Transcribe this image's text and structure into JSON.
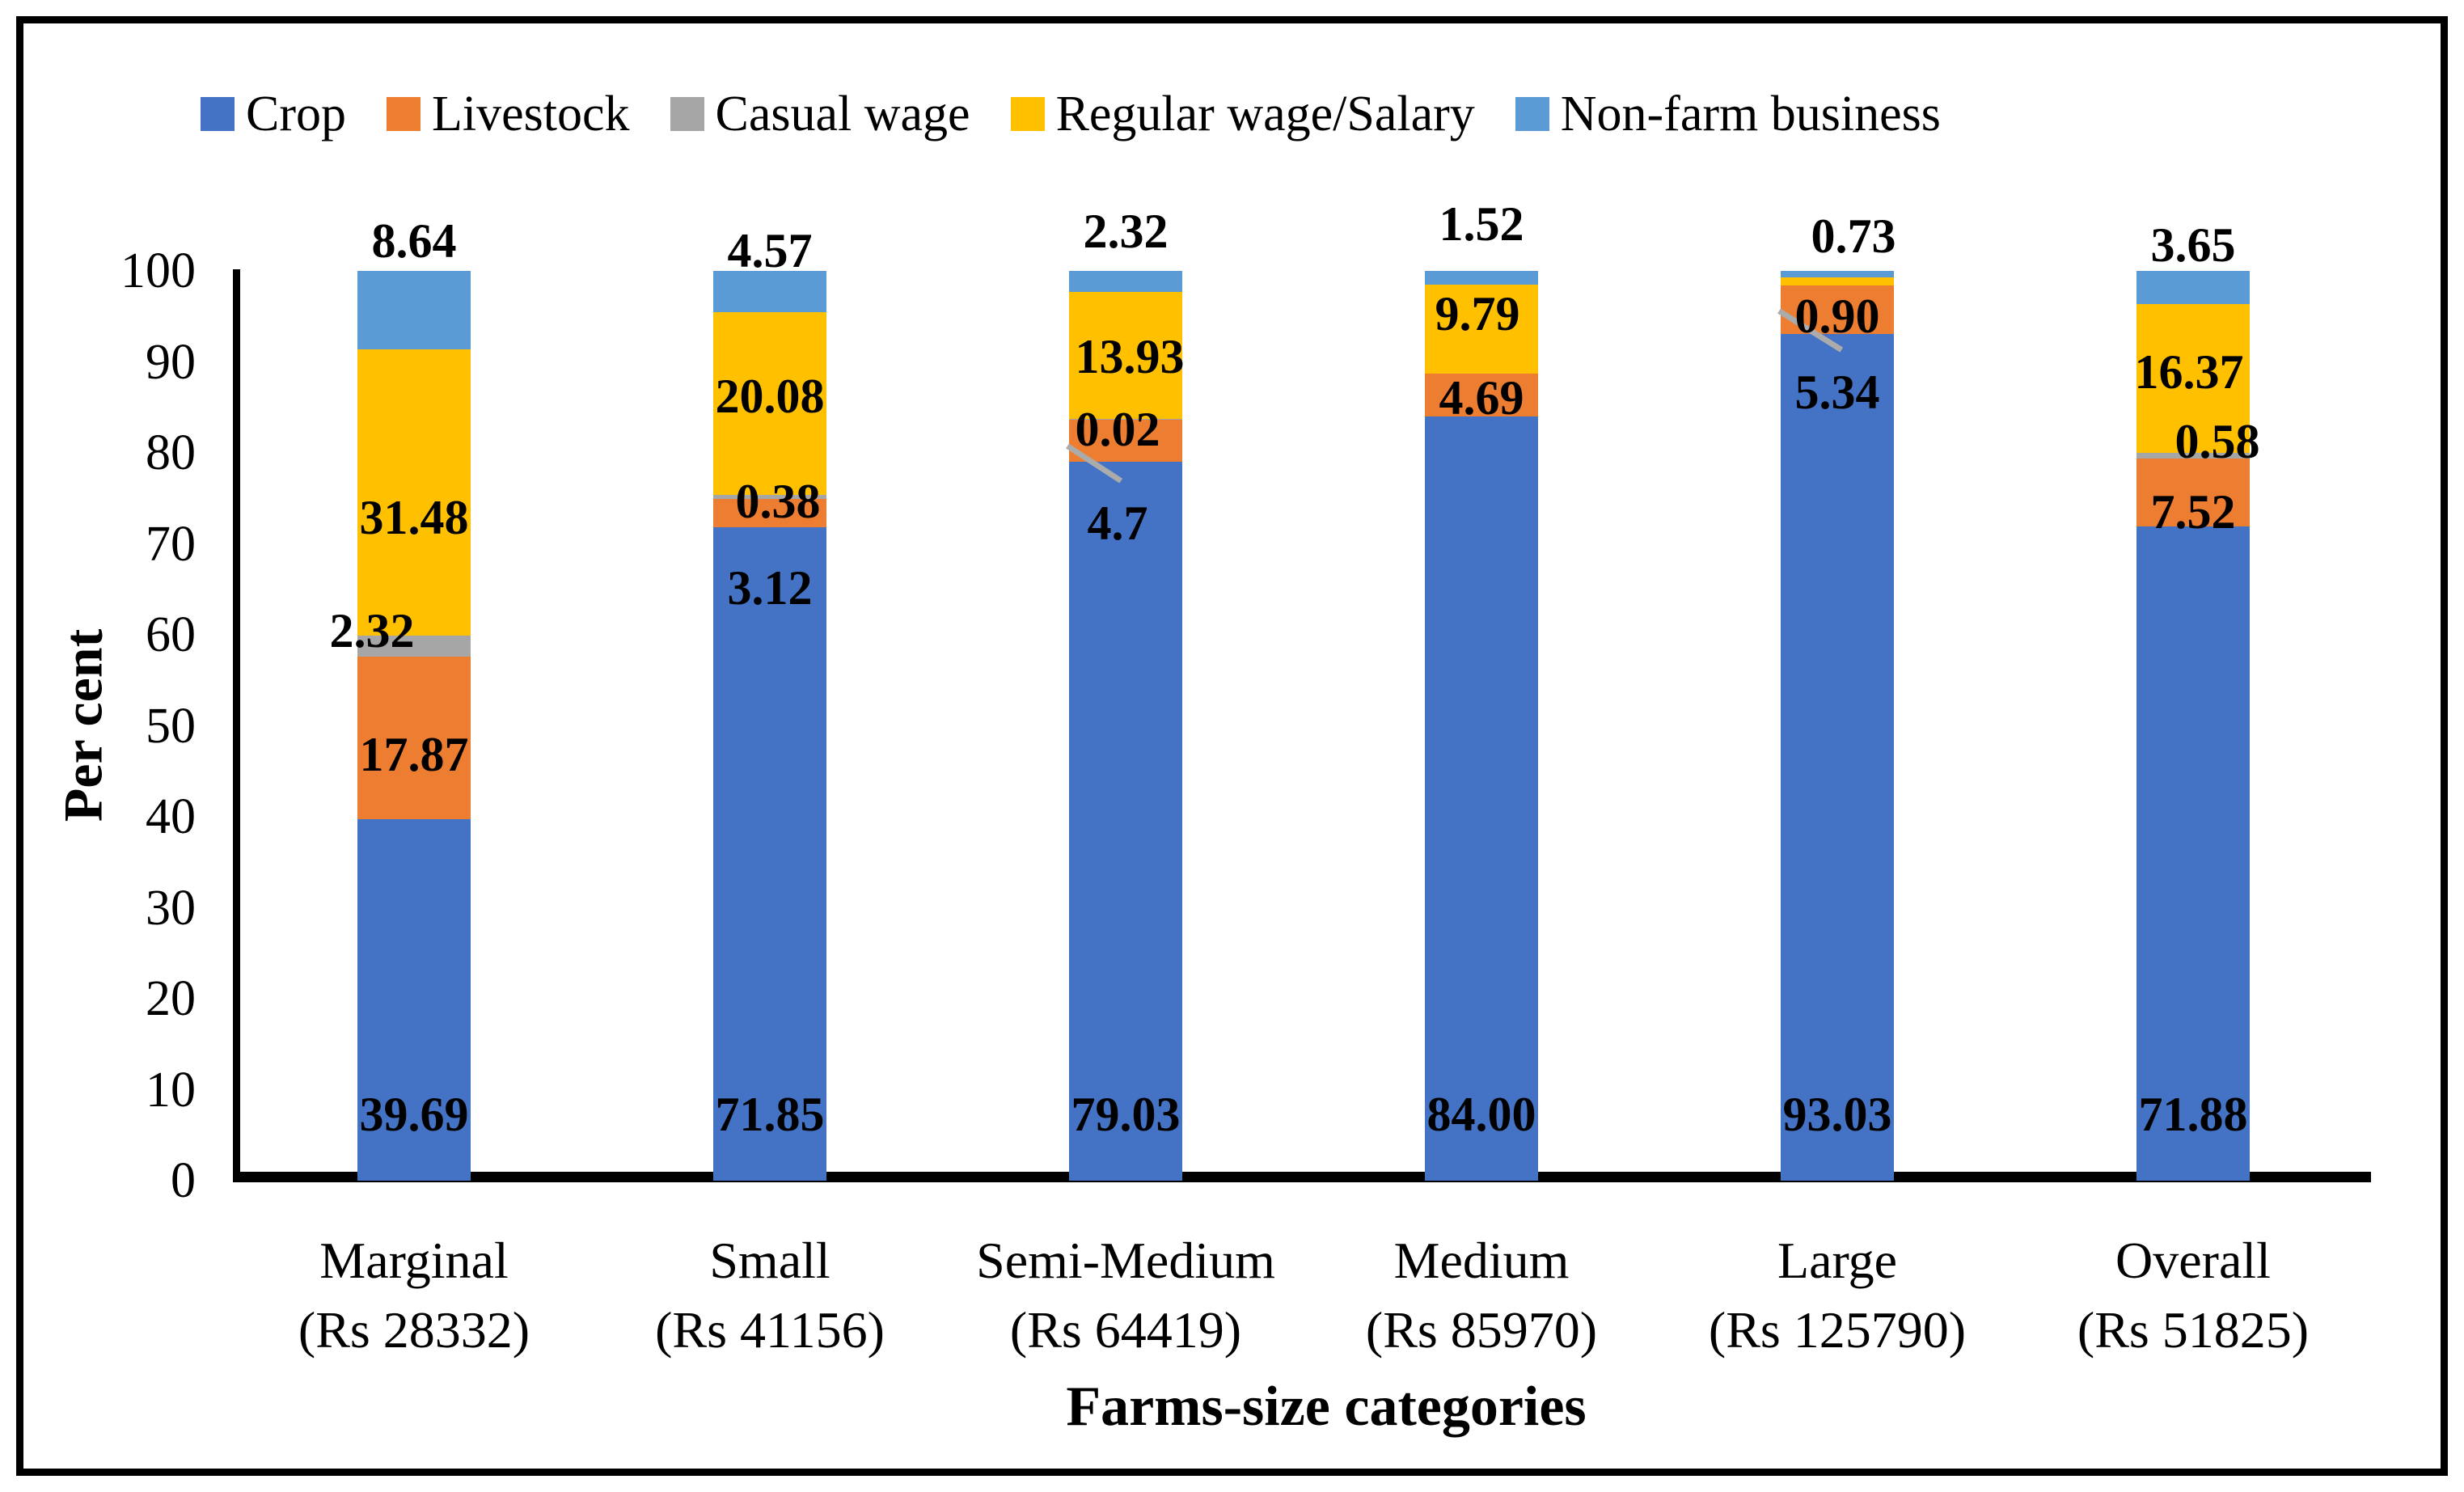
{
  "figure": {
    "background": "#FFFFFF",
    "frame_color": "#000000"
  },
  "chart_data": {
    "type": "bar",
    "stacked": true,
    "orientation": "vertical",
    "title": "",
    "xlabel": "Farms-size categories",
    "ylabel": "Per cent",
    "ylim": [
      0,
      100
    ],
    "yticks": [
      0,
      10,
      20,
      30,
      40,
      50,
      60,
      70,
      80,
      90,
      100
    ],
    "grid": false,
    "legend_position": "top",
    "categories": [
      {
        "label": "Marginal",
        "sublabel": "(Rs 28332)"
      },
      {
        "label": "Small",
        "sublabel": "(Rs 41156)"
      },
      {
        "label": "Semi-Medium",
        "sublabel": "(Rs 64419)"
      },
      {
        "label": "Medium",
        "sublabel": "(Rs 85970)"
      },
      {
        "label": "Large",
        "sublabel": "(Rs 125790)"
      },
      {
        "label": "Overall",
        "sublabel": "(Rs 51825)"
      }
    ],
    "series": [
      {
        "name": "Crop",
        "color": "#4472C4",
        "values": [
          39.69,
          71.85,
          79.03,
          84.0,
          93.03,
          71.88
        ],
        "labels": [
          "39.69",
          "71.85",
          "79.03",
          "84.00",
          "93.03",
          "71.88"
        ]
      },
      {
        "name": "Livestock",
        "color": "#ED7D31",
        "values": [
          17.87,
          3.12,
          4.7,
          4.69,
          5.34,
          7.52
        ],
        "labels": [
          "17.87",
          "3.12",
          "4.7",
          "4.69",
          "5.34",
          "7.52"
        ]
      },
      {
        "name": "Casual wage",
        "color": "#A6A6A6",
        "values": [
          2.32,
          0.38,
          0.02,
          0,
          0,
          0.58
        ],
        "labels": [
          "2.32",
          "0.38",
          "0.02",
          "",
          "",
          "0.58"
        ]
      },
      {
        "name": "Regular wage/Salary",
        "color": "#FFC000",
        "values": [
          31.48,
          20.08,
          13.93,
          9.79,
          0.9,
          16.37
        ],
        "labels": [
          "31.48",
          "20.08",
          "13.93",
          "9.79",
          "0.90",
          "16.37"
        ]
      },
      {
        "name": "Non-farm business",
        "color": "#5B9BD5",
        "values": [
          8.64,
          4.57,
          2.32,
          1.52,
          0.73,
          3.65
        ],
        "labels": [
          "8.64",
          "4.57",
          "2.32",
          "1.52",
          "0.73",
          "3.65"
        ]
      }
    ]
  }
}
